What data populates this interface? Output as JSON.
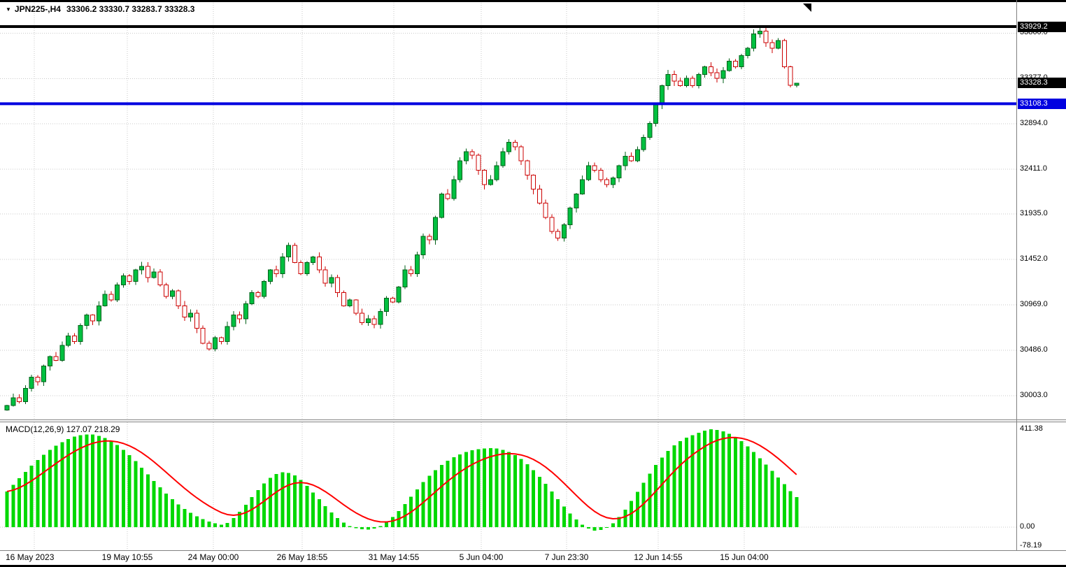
{
  "header": {
    "symbol": "JPN225-,H4",
    "ohlc": "33306.2 33330.7 33283.7 33328.3"
  },
  "macd": {
    "label": "MACD(12,26,9) 127.07 218.29"
  },
  "colors": {
    "background": "#FFFFFF",
    "bull_fill": "#00C040",
    "bull_stroke": "#006018",
    "bear_fill": "#FFFFFF",
    "bear_stroke": "#CC0000",
    "macd_hist": "#00D800",
    "macd_signal": "#FF0000",
    "grid": "#C9C9C9",
    "hline_high": "#000000",
    "hline_support": "#0000E0",
    "tag_black_bg": "#000000",
    "tag_blue_bg": "#0000E0",
    "tag_text": "#FFFFFF",
    "separator": "#808080",
    "axis_text": "#000000"
  },
  "chart_data": [
    {
      "type": "candlestick",
      "symbol": "JPN225-",
      "timeframe": "H4",
      "ylim": [
        29840,
        33990
      ],
      "y_axis": {
        "ticks": [
          {
            "text": "33860.0",
            "price": 33860.0
          },
          {
            "text": "33377.0",
            "price": 33377.0
          },
          {
            "text": "32894.0",
            "price": 32894.0
          },
          {
            "text": "32411.0",
            "price": 32411.0
          },
          {
            "text": "31935.0",
            "price": 31935.0
          },
          {
            "text": "31452.0",
            "price": 31452.0
          },
          {
            "text": "30969.0",
            "price": 30969.0
          },
          {
            "text": "30486.0",
            "price": 30486.0
          },
          {
            "text": "30003.0",
            "price": 30003.0
          }
        ]
      },
      "x_axis": {
        "labels": [
          {
            "text": "16 May 2023",
            "x": 8,
            "align": "left"
          },
          {
            "text": "19 May 10:55",
            "x": 182,
            "align": "center"
          },
          {
            "text": "24 May 00:00",
            "x": 305,
            "align": "center"
          },
          {
            "text": "26 May 18:55",
            "x": 432,
            "align": "center"
          },
          {
            "text": "31 May 14:55",
            "x": 563,
            "align": "center"
          },
          {
            "text": "5 Jun 04:00",
            "x": 688,
            "align": "center"
          },
          {
            "text": "7 Jun 23:30",
            "x": 810,
            "align": "center"
          },
          {
            "text": "12 Jun 14:55",
            "x": 941,
            "align": "center"
          },
          {
            "text": "15 Jun 04:00",
            "x": 1064,
            "align": "center"
          }
        ],
        "grid_x": [
          49,
          182,
          305,
          432,
          563,
          688,
          810,
          941,
          1064
        ]
      },
      "first_open": 29850,
      "closes": [
        29900,
        29980,
        29940,
        30080,
        30200,
        30150,
        30320,
        30420,
        30380,
        30540,
        30640,
        30580,
        30750,
        30860,
        30800,
        30960,
        31080,
        31020,
        31180,
        31280,
        31220,
        31340,
        31380,
        31260,
        31320,
        31180,
        31060,
        31120,
        30960,
        30840,
        30880,
        30720,
        30560,
        30500,
        30620,
        30580,
        30740,
        30860,
        30820,
        30980,
        31100,
        31060,
        31220,
        31340,
        31300,
        31480,
        31600,
        31420,
        31300,
        31420,
        31480,
        31340,
        31200,
        31260,
        31100,
        30960,
        31020,
        30880,
        30780,
        30820,
        30760,
        30900,
        31040,
        31000,
        31160,
        31340,
        31300,
        31500,
        31700,
        31660,
        31900,
        32150,
        32100,
        32300,
        32500,
        32600,
        32560,
        32400,
        32250,
        32300,
        32450,
        32600,
        32700,
        32650,
        32500,
        32350,
        32200,
        32050,
        31900,
        31750,
        31680,
        31820,
        32000,
        32150,
        32300,
        32450,
        32400,
        32300,
        32250,
        32320,
        32450,
        32550,
        32500,
        32620,
        32750,
        32900,
        33100,
        33300,
        33420,
        33350,
        33300,
        33380,
        33300,
        33420,
        33500,
        33440,
        33380,
        33460,
        33560,
        33500,
        33620,
        33700,
        33850,
        33880,
        33760,
        33700,
        33780,
        33500,
        33306.2,
        33328.3
      ],
      "highs_override": {
        "123": 33929.2
      },
      "lows_override": {
        "107": 33050
      },
      "current_bar": {
        "open": 33306.2,
        "high": 33330.7,
        "low": 33283.7,
        "close": 33328.3
      },
      "last_price": 33328.3,
      "hlines": [
        {
          "price": 33929.2,
          "color": "#000000"
        },
        {
          "price": 33108.3,
          "color": "#0000E0"
        }
      ],
      "price_tags": [
        {
          "text": "33929.2",
          "price": 33929.2,
          "bg": "#000000"
        },
        {
          "text": "33328.3",
          "price": 33328.3,
          "bg": "#000000"
        },
        {
          "text": "33108.3",
          "price": 33108.3,
          "bg": "#0000E0"
        }
      ]
    },
    {
      "type": "bar",
      "name": "MACD(12,26,9)",
      "main_value": 127.07,
      "signal_value": 218.29,
      "ylim": [
        -78.19,
        411.38
      ],
      "y_axis": {
        "ticks": [
          {
            "text": "411.38",
            "value": 411.38
          },
          {
            "text": "0.00",
            "value": 0
          },
          {
            "text": "-78.19",
            "value": -78.19
          }
        ]
      },
      "signal_method": "ema9",
      "histogram": [
        150,
        178,
        205,
        232,
        258,
        282,
        304,
        324,
        342,
        357,
        370,
        380,
        386,
        390,
        389,
        384,
        375,
        362,
        345,
        325,
        302,
        277,
        250,
        222,
        194,
        167,
        141,
        117,
        95,
        76,
        60,
        46,
        34,
        24,
        16,
        10,
        18,
        38,
        64,
        94,
        126,
        156,
        184,
        207,
        223,
        230,
        228,
        217,
        198,
        174,
        146,
        117,
        88,
        61,
        38,
        19,
        5,
        -4,
        -9,
        -10,
        -6,
        4,
        20,
        42,
        68,
        97,
        128,
        159,
        189,
        216,
        240,
        261,
        279,
        294,
        306,
        316,
        323,
        328,
        331,
        332,
        330,
        325,
        316,
        303,
        286,
        265,
        240,
        212,
        182,
        150,
        118,
        87,
        58,
        32,
        10,
        -6,
        -14,
        -12,
        -2,
        16,
        42,
        74,
        110,
        148,
        187,
        225,
        261,
        293,
        321,
        344,
        362,
        376,
        386,
        396,
        405,
        411,
        409,
        403,
        393,
        379,
        361,
        340,
        316,
        290,
        263,
        236,
        208,
        180,
        152,
        127.07
      ]
    }
  ]
}
